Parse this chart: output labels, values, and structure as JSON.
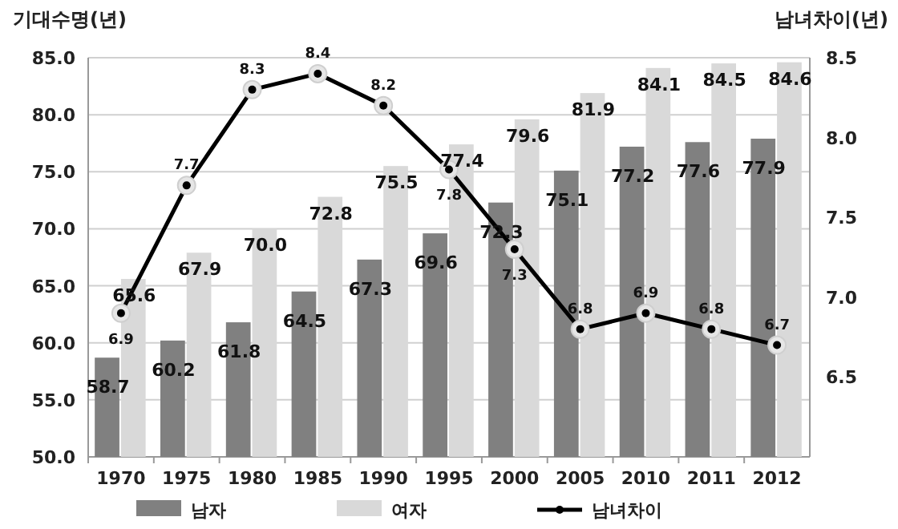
{
  "chart_data": {
    "type": "bar",
    "ylabel": "기대수명(년)",
    "y2label": "남녀차이(년)",
    "categories": [
      "1970",
      "1975",
      "1980",
      "1985",
      "1990",
      "1995",
      "2000",
      "2005",
      "2010",
      "2011",
      "2012"
    ],
    "series": [
      {
        "name": "남자",
        "color": "#808080",
        "values": [
          58.7,
          60.2,
          61.8,
          64.5,
          67.3,
          69.6,
          72.3,
          75.1,
          77.2,
          77.6,
          77.9
        ],
        "value_labels": [
          "58.7",
          "60.2",
          "61.8",
          "64.5",
          "67.3",
          "69.6",
          "72.3",
          "75.1",
          "77.2",
          "77.6",
          "77.9"
        ]
      },
      {
        "name": "여자",
        "color": "#d9d9d9",
        "values": [
          65.6,
          67.9,
          70.0,
          72.8,
          75.5,
          77.4,
          79.6,
          81.9,
          84.1,
          84.5,
          84.6
        ],
        "value_labels": [
          "65.6",
          "67.9",
          "70.0",
          "72.8",
          "75.5",
          "77.4",
          "79.6",
          "81.9",
          "84.1",
          "84.5",
          "84.6"
        ]
      },
      {
        "name": "남녀차이",
        "type": "line",
        "axis": "y2",
        "color": "#000000",
        "values": [
          6.9,
          7.7,
          8.3,
          8.4,
          8.2,
          7.8,
          7.3,
          6.8,
          6.9,
          6.8,
          6.7
        ],
        "value_labels": [
          "6.9",
          "7.7",
          "8.3",
          "8.4",
          "8.2",
          "7.8",
          "7.3",
          "6.8",
          "6.9",
          "6.8",
          "6.7"
        ]
      }
    ],
    "ylim": [
      50,
      85
    ],
    "yticks": [
      {
        "value": 50,
        "label": "50.0"
      },
      {
        "value": 55,
        "label": "55.0"
      },
      {
        "value": 60,
        "label": "60.0"
      },
      {
        "value": 65,
        "label": "65.0"
      },
      {
        "value": 70,
        "label": "70.0"
      },
      {
        "value": 75,
        "label": "75.0"
      },
      {
        "value": 80,
        "label": "80.0"
      },
      {
        "value": 85,
        "label": "85.0"
      }
    ],
    "y2lim": [
      6.0,
      8.5
    ],
    "y2ticks": [
      {
        "value": 6.5,
        "label": "6.5"
      },
      {
        "value": 7,
        "label": "7.0"
      },
      {
        "value": 7.5,
        "label": "7.5"
      },
      {
        "value": 8,
        "label": "8.0"
      },
      {
        "value": 8.5,
        "label": "8.5"
      }
    ],
    "grid": "y",
    "legend": "bottom",
    "marker": "circle",
    "line_style": "solid"
  }
}
